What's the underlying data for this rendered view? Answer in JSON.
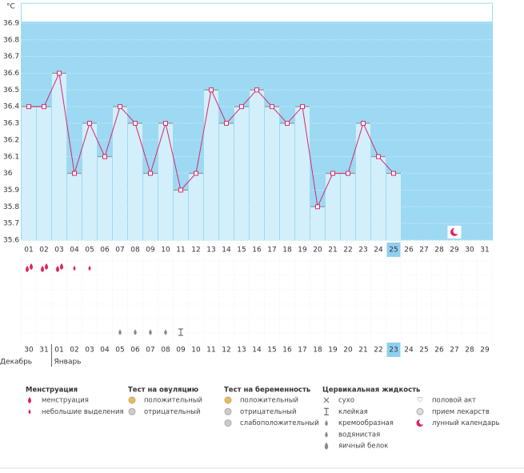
{
  "chart_data": {
    "type": "line",
    "unit": "°C",
    "categories": [
      "01",
      "02",
      "03",
      "04",
      "05",
      "06",
      "07",
      "08",
      "09",
      "10",
      "11",
      "12",
      "13",
      "14",
      "15",
      "16",
      "17",
      "18",
      "19",
      "20",
      "21",
      "22",
      "23",
      "24",
      "25",
      "26",
      "27",
      "28",
      "29",
      "30",
      "31"
    ],
    "values": [
      36.4,
      36.4,
      36.6,
      36.0,
      36.3,
      36.1,
      36.4,
      36.3,
      36.0,
      36.3,
      35.9,
      36.0,
      36.5,
      36.3,
      36.4,
      36.5,
      36.4,
      36.3,
      36.4,
      35.8,
      36.0,
      36.0,
      36.3,
      36.1,
      36.0,
      null,
      null,
      null,
      null,
      null,
      null
    ],
    "ylim": [
      35.6,
      37.0
    ],
    "yticks": [
      35.6,
      35.7,
      35.8,
      35.9,
      36,
      36.1,
      36.2,
      36.3,
      36.4,
      36.5,
      36.6,
      36.7,
      36.8,
      36.9
    ],
    "line_color": "#d6286e",
    "bar_color": "#d3effb",
    "plot_color": "#9dd9f3",
    "grid": true,
    "today_index": 24,
    "dates": [
      "30",
      "31",
      "01",
      "02",
      "03",
      "04",
      "05",
      "06",
      "07",
      "08",
      "09",
      "10",
      "11",
      "12",
      "13",
      "14",
      "15",
      "16",
      "17",
      "18",
      "19",
      "20",
      "21",
      "22",
      "23",
      "24",
      "25",
      "26",
      "27",
      "28",
      "29"
    ],
    "red_dates": [
      5,
      6,
      12,
      13,
      19,
      20,
      26,
      27
    ],
    "months": [
      {
        "label": "Декабрь",
        "start": 0
      },
      {
        "label": "Январь",
        "start": 2
      }
    ],
    "menstruation_days": [
      0,
      1,
      2
    ],
    "spotting_days": [
      3,
      4
    ],
    "watery_days": [
      6,
      7,
      8,
      9
    ],
    "sticky_days": [
      10
    ],
    "moon_days": [
      28
    ]
  },
  "legend": [
    {
      "title": "Менструация",
      "items": [
        "менструация",
        "небольшие выделения"
      ]
    },
    {
      "title": "Тест на овуляцию",
      "items": [
        "положительный",
        "отрицательный"
      ]
    },
    {
      "title": "Тест на беременность",
      "items": [
        "положительный",
        "отрицательный",
        "слабоположительный"
      ]
    },
    {
      "title": "Цервикальная жидкость",
      "items": [
        "сухо",
        "клейкая",
        "кремообразная",
        "водянистая",
        "яичный белок"
      ]
    },
    {
      "items": [
        "половой акт",
        "прием лекарств",
        "лунный календарь"
      ]
    }
  ]
}
